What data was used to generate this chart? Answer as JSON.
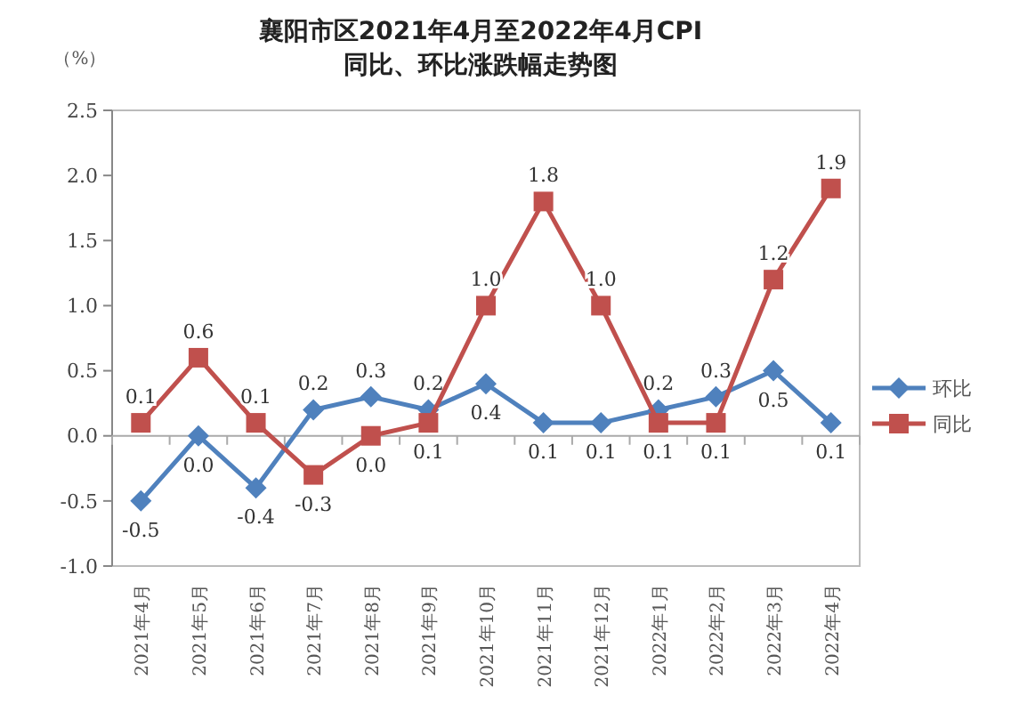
{
  "chart_data": {
    "type": "line",
    "title": "襄阳市区2021年4月至2022年4月CPI\n同比、环比涨跌幅走势图",
    "ylabel": "（%）",
    "categories": [
      "2021年4月",
      "2021年5月",
      "2021年6月",
      "2021年7月",
      "2021年8月",
      "2021年9月",
      "2021年10月",
      "2021年11月",
      "2021年12月",
      "2022年1月",
      "2022年2月",
      "2022年3月",
      "2022年4月"
    ],
    "series": [
      {
        "name": "环比",
        "color": "#4f81bd",
        "marker": "diamond",
        "values": [
          -0.5,
          0.0,
          -0.4,
          0.2,
          0.3,
          0.2,
          0.4,
          0.1,
          0.1,
          0.2,
          0.3,
          0.5,
          0.1
        ],
        "value_labels": [
          "-0.5",
          "0.0",
          "-0.4",
          "0.2",
          "0.3",
          "0.2",
          "0.4",
          "0.1",
          "0.1",
          "0.2",
          "0.3",
          "0.5",
          "0.1"
        ]
      },
      {
        "name": "同比",
        "color": "#c0504d",
        "marker": "square",
        "values": [
          0.1,
          0.6,
          0.1,
          -0.3,
          0.0,
          0.1,
          1.0,
          1.8,
          1.0,
          0.1,
          0.1,
          1.2,
          1.9
        ],
        "value_labels": [
          "0.1",
          "0.6",
          "0.1",
          "-0.3",
          "0.0",
          "0.1",
          "1.0",
          "1.8",
          "1.0",
          "0.1",
          "0.1",
          "1.2",
          "1.9"
        ]
      }
    ],
    "ylim": [
      -1.0,
      2.5
    ],
    "yticks": [
      {
        "value": -1.0,
        "label": "-1.0"
      },
      -0.5,
      {
        "value": 0.0,
        "label": "0.0"
      },
      0.5,
      {
        "value": 1.0,
        "label": "1.0"
      },
      1.5,
      {
        "value": 2.0,
        "label": "2.0"
      },
      2.5
    ],
    "legend": "right"
  }
}
